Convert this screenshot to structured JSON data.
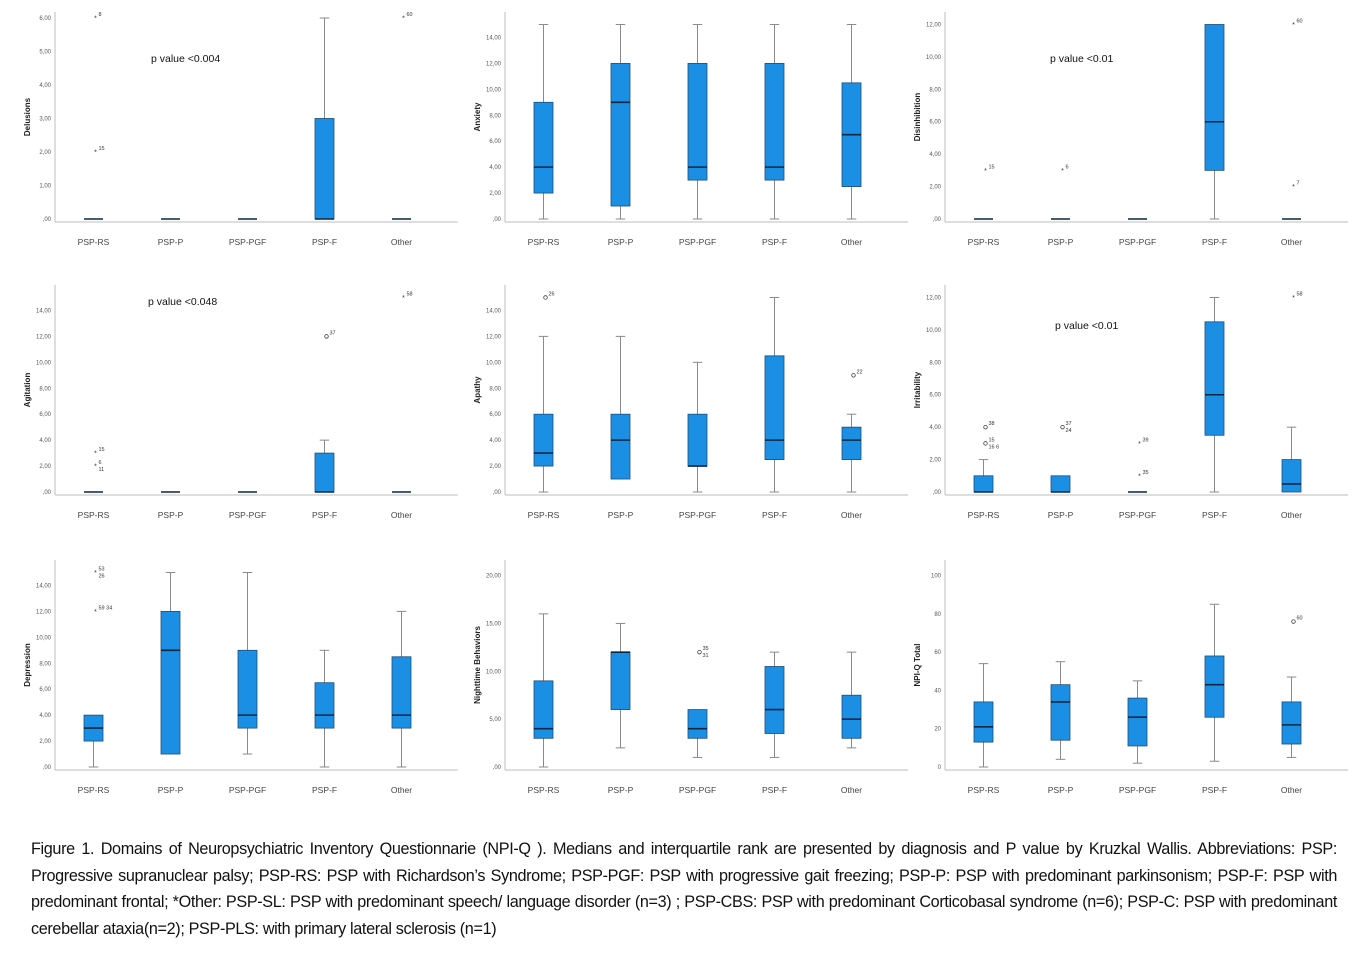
{
  "colors": {
    "box_fill": "#1a8fe3",
    "box_stroke": "#1c4f7a",
    "whisker": "#8a8a8a",
    "median": "#0b2740",
    "axis": "#bdbdbd"
  },
  "caption": "Figure 1. Domains of Neuropsychiatric Inventory Questionnarie (NPI-Q ). Medians and interquartile rank are presented by diagnosis and P value by Kruzkal Wallis. Abbreviations: PSP: Progressive supranuclear palsy; PSP-RS: PSP with Richardson’s Syndrome; PSP-PGF: PSP with progressive gait freezing; PSP-P: PSP with predominant parkinsonism; PSP-F: PSP with predominant frontal; *Other:  PSP-SL: PSP with predominant speech/ language disorder (n=3) ; PSP-CBS: PSP with predominant Corticobasal syndrome (n=6); PSP-C: PSP  with predominant cerebellar ataxia(n=2); PSP-PLS: with primary lateral sclerosis (n=1)",
  "chart_data": [
    {
      "type": "box",
      "title": "",
      "ylabel": "Delusions",
      "ylim": [
        0,
        6
      ],
      "yticks": [
        0,
        1,
        2,
        3,
        4,
        5,
        6
      ],
      "ytick_labels": [
        ",00",
        "1,00",
        "2,00",
        "3,00",
        "4,00",
        "5,00",
        "6,00"
      ],
      "annotation": "p value <0.004",
      "categories": [
        "PSP-RS",
        "PSP-P",
        "PSP-PGF",
        "PSP-F",
        "Other"
      ],
      "boxes": [
        {
          "min": 0,
          "q1": 0,
          "median": 0,
          "q3": 0,
          "max": 0
        },
        {
          "min": 0,
          "q1": 0,
          "median": 0,
          "q3": 0,
          "max": 0
        },
        {
          "min": 0,
          "q1": 0,
          "median": 0,
          "q3": 0,
          "max": 0
        },
        {
          "min": 0,
          "q1": 0,
          "median": 0,
          "q3": 3,
          "max": 6
        },
        {
          "min": 0,
          "q1": 0,
          "median": 0,
          "q3": 0,
          "max": 0
        }
      ],
      "outliers": [
        {
          "category": "PSP-RS",
          "value": 6,
          "marker": "*",
          "label": "8"
        },
        {
          "category": "PSP-RS",
          "value": 2,
          "marker": "*",
          "label": "15"
        },
        {
          "category": "Other",
          "value": 6,
          "marker": "*",
          "label": "60"
        }
      ]
    },
    {
      "type": "box",
      "title": "",
      "ylabel": "Anxiety",
      "ylim": [
        0,
        15.5
      ],
      "yticks": [
        0,
        2,
        4,
        6,
        8,
        10,
        12,
        14
      ],
      "ytick_labels": [
        ",00",
        "2,00",
        "4,00",
        "6,00",
        "8,00",
        "10,00",
        "12,00",
        "14,00"
      ],
      "annotation": "",
      "categories": [
        "PSP-RS",
        "PSP-P",
        "PSP-PGF",
        "PSP-F",
        "Other"
      ],
      "boxes": [
        {
          "min": 0,
          "q1": 2,
          "median": 4,
          "q3": 9,
          "max": 15
        },
        {
          "min": 0,
          "q1": 1,
          "median": 9,
          "q3": 12,
          "max": 15
        },
        {
          "min": 0,
          "q1": 3,
          "median": 4,
          "q3": 12,
          "max": 15
        },
        {
          "min": 0,
          "q1": 3,
          "median": 4,
          "q3": 12,
          "max": 15
        },
        {
          "min": 0,
          "q1": 2.5,
          "median": 6.5,
          "q3": 10.5,
          "max": 15
        }
      ],
      "outliers": []
    },
    {
      "type": "box",
      "title": "",
      "ylabel": "Disinhibition",
      "ylim": [
        0,
        12.4
      ],
      "yticks": [
        0,
        2,
        4,
        6,
        8,
        10,
        12
      ],
      "ytick_labels": [
        ",00",
        "2,00",
        "4,00",
        "6,00",
        "8,00",
        "10,00",
        "12,00"
      ],
      "annotation": "p value <0.01",
      "categories": [
        "PSP-RS",
        "PSP-P",
        "PSP-PGF",
        "PSP-F",
        "Other"
      ],
      "boxes": [
        {
          "min": 0,
          "q1": 0,
          "median": 0,
          "q3": 0,
          "max": 0
        },
        {
          "min": 0,
          "q1": 0,
          "median": 0,
          "q3": 0,
          "max": 0
        },
        {
          "min": 0,
          "q1": 0,
          "median": 0,
          "q3": 0,
          "max": 0
        },
        {
          "min": 0,
          "q1": 3,
          "median": 6,
          "q3": 12,
          "max": 12
        },
        {
          "min": 0,
          "q1": 0,
          "median": 0,
          "q3": 0,
          "max": 0
        }
      ],
      "outliers": [
        {
          "category": "PSP-RS",
          "value": 3,
          "marker": "*",
          "label": "15"
        },
        {
          "category": "PSP-P",
          "value": 3,
          "marker": "*",
          "label": "6"
        },
        {
          "category": "Other",
          "value": 12,
          "marker": "*",
          "label": "60"
        },
        {
          "category": "Other",
          "value": 2,
          "marker": "*",
          "label": "7"
        }
      ]
    },
    {
      "type": "box",
      "title": "",
      "ylabel": "Agitation",
      "ylim": [
        0,
        15.5
      ],
      "yticks": [
        0,
        2,
        4,
        6,
        8,
        10,
        12,
        14
      ],
      "ytick_labels": [
        ",00",
        "2,00",
        "4,00",
        "6,00",
        "8,00",
        "10,00",
        "12,00",
        "14,00"
      ],
      "annotation": "p value <0.048",
      "categories": [
        "PSP-RS",
        "PSP-P",
        "PSP-PGF",
        "PSP-F",
        "Other"
      ],
      "boxes": [
        {
          "min": 0,
          "q1": 0,
          "median": 0,
          "q3": 0,
          "max": 0
        },
        {
          "min": 0,
          "q1": 0,
          "median": 0,
          "q3": 0,
          "max": 0
        },
        {
          "min": 0,
          "q1": 0,
          "median": 0,
          "q3": 0,
          "max": 0
        },
        {
          "min": 0,
          "q1": 0,
          "median": 0,
          "q3": 3,
          "max": 4
        },
        {
          "min": 0,
          "q1": 0,
          "median": 0,
          "q3": 0,
          "max": 0
        }
      ],
      "outliers": [
        {
          "category": "PSP-RS",
          "value": 3,
          "marker": "*",
          "label": "15"
        },
        {
          "category": "PSP-RS",
          "value": 2,
          "marker": "*",
          "label": "6"
        },
        {
          "category": "PSP-RS",
          "value": 2,
          "marker": "*",
          "label": "11"
        },
        {
          "category": "PSP-F",
          "value": 12,
          "marker": "o",
          "label": "37"
        },
        {
          "category": "Other",
          "value": 15,
          "marker": "*",
          "label": "58"
        }
      ]
    },
    {
      "type": "box",
      "title": "",
      "ylabel": "Apathy",
      "ylim": [
        0,
        15.5
      ],
      "yticks": [
        0,
        2,
        4,
        6,
        8,
        10,
        12,
        14
      ],
      "ytick_labels": [
        ",00",
        "2,00",
        "4,00",
        "6,00",
        "8,00",
        "10,00",
        "12,00",
        "14,00"
      ],
      "annotation": "",
      "categories": [
        "PSP-RS",
        "PSP-P",
        "PSP-PGF",
        "PSP-F",
        "Other"
      ],
      "boxes": [
        {
          "min": 0,
          "q1": 2,
          "median": 3,
          "q3": 6,
          "max": 12
        },
        {
          "min": 1,
          "q1": 1,
          "median": 4,
          "q3": 6,
          "max": 12
        },
        {
          "min": 0,
          "q1": 2,
          "median": 2,
          "q3": 6,
          "max": 10
        },
        {
          "min": 0,
          "q1": 2.5,
          "median": 4,
          "q3": 10.5,
          "max": 15
        },
        {
          "min": 0,
          "q1": 2.5,
          "median": 4,
          "q3": 5,
          "max": 6
        }
      ],
      "outliers": [
        {
          "category": "PSP-RS",
          "value": 15,
          "marker": "o",
          "label": "26"
        },
        {
          "category": "Other",
          "value": 9,
          "marker": "o",
          "label": "22"
        }
      ]
    },
    {
      "type": "box",
      "title": "",
      "ylabel": "Irritability",
      "ylim": [
        0,
        12.4
      ],
      "yticks": [
        0,
        2,
        4,
        6,
        8,
        10,
        12
      ],
      "ytick_labels": [
        ",00",
        "2,00",
        "4,00",
        "6,00",
        "8,00",
        "10,00",
        "12,00"
      ],
      "annotation": "p value <0.01",
      "categories": [
        "PSP-RS",
        "PSP-P",
        "PSP-PGF",
        "PSP-F",
        "Other"
      ],
      "boxes": [
        {
          "min": 0,
          "q1": 0,
          "median": 0,
          "q3": 1,
          "max": 2
        },
        {
          "min": 0,
          "q1": 0,
          "median": 0,
          "q3": 1,
          "max": 1
        },
        {
          "min": 0,
          "q1": 0,
          "median": 0,
          "q3": 0,
          "max": 0
        },
        {
          "min": 0,
          "q1": 3.5,
          "median": 6,
          "q3": 10.5,
          "max": 12
        },
        {
          "min": 0,
          "q1": 0,
          "median": 0.5,
          "q3": 2,
          "max": 4
        }
      ],
      "outliers": [
        {
          "category": "PSP-RS",
          "value": 4,
          "marker": "o",
          "label": "38"
        },
        {
          "category": "PSP-RS",
          "value": 3,
          "marker": "o",
          "label": "15"
        },
        {
          "category": "PSP-RS",
          "value": 3,
          "marker": "o",
          "label": "16  6"
        },
        {
          "category": "PSP-P",
          "value": 4,
          "marker": "o",
          "label": "37"
        },
        {
          "category": "PSP-P",
          "value": 4,
          "marker": "o",
          "label": "24"
        },
        {
          "category": "PSP-PGF",
          "value": 3,
          "marker": "*",
          "label": "39"
        },
        {
          "category": "PSP-PGF",
          "value": 1,
          "marker": "*",
          "label": "35"
        },
        {
          "category": "Other",
          "value": 12,
          "marker": "*",
          "label": "58"
        }
      ]
    },
    {
      "type": "box",
      "title": "",
      "ylabel": "Depression",
      "ylim": [
        0,
        15.5
      ],
      "yticks": [
        0,
        2,
        4,
        6,
        8,
        10,
        12,
        14
      ],
      "ytick_labels": [
        ",00",
        "2,00",
        "4,00",
        "6,00",
        "8,00",
        "10,00",
        "12,00",
        "14,00"
      ],
      "annotation": "",
      "categories": [
        "PSP-RS",
        "PSP-P",
        "PSP-PGF",
        "PSP-F",
        "Other"
      ],
      "boxes": [
        {
          "min": 0,
          "q1": 2,
          "median": 3,
          "q3": 4,
          "max": 4
        },
        {
          "min": 1,
          "q1": 1,
          "median": 9,
          "q3": 12,
          "max": 15
        },
        {
          "min": 1,
          "q1": 3,
          "median": 4,
          "q3": 9,
          "max": 15
        },
        {
          "min": 0,
          "q1": 3,
          "median": 4,
          "q3": 6.5,
          "max": 9
        },
        {
          "min": 0,
          "q1": 3,
          "median": 4,
          "q3": 8.5,
          "max": 12
        }
      ],
      "outliers": [
        {
          "category": "PSP-RS",
          "value": 15,
          "marker": "*",
          "label": "53"
        },
        {
          "category": "PSP-RS",
          "value": 15,
          "marker": "*",
          "label": "26"
        },
        {
          "category": "PSP-RS",
          "value": 12,
          "marker": "*",
          "label": "59  34"
        }
      ]
    },
    {
      "type": "box",
      "title": "",
      "ylabel": "Nighttime Behaviors",
      "ylim": [
        0,
        21
      ],
      "yticks": [
        0,
        5,
        10,
        15,
        20
      ],
      "ytick_labels": [
        ",00",
        "5,00",
        "10,00",
        "15,00",
        "20,00"
      ],
      "annotation": "",
      "categories": [
        "PSP-RS",
        "PSP-P",
        "PSP-PGF",
        "PSP-F",
        "Other"
      ],
      "boxes": [
        {
          "min": 0,
          "q1": 3,
          "median": 4,
          "q3": 9,
          "max": 16
        },
        {
          "min": 2,
          "q1": 6,
          "median": 12,
          "q3": 12,
          "max": 15
        },
        {
          "min": 1,
          "q1": 3,
          "median": 4,
          "q3": 6,
          "max": 6
        },
        {
          "min": 1,
          "q1": 3.5,
          "median": 6,
          "q3": 10.5,
          "max": 12
        },
        {
          "min": 2,
          "q1": 3,
          "median": 5,
          "q3": 7.5,
          "max": 12
        }
      ],
      "outliers": [
        {
          "category": "PSP-PGF",
          "value": 12,
          "marker": "o",
          "label": "35"
        },
        {
          "category": "PSP-PGF",
          "value": 12,
          "marker": "o",
          "label": "31"
        }
      ]
    },
    {
      "type": "box",
      "title": "",
      "ylabel": "NPI-Q Total",
      "ylim": [
        0,
        105
      ],
      "yticks": [
        0,
        20,
        40,
        60,
        80,
        100
      ],
      "ytick_labels": [
        "0",
        "20",
        "40",
        "60",
        "80",
        "100"
      ],
      "annotation": "",
      "categories": [
        "PSP-RS",
        "PSP-P",
        "PSP-PGF",
        "PSP-F",
        "Other"
      ],
      "boxes": [
        {
          "min": 0,
          "q1": 13,
          "median": 21,
          "q3": 34,
          "max": 54
        },
        {
          "min": 4,
          "q1": 14,
          "median": 34,
          "q3": 43,
          "max": 55
        },
        {
          "min": 2,
          "q1": 11,
          "median": 26,
          "q3": 36,
          "max": 45
        },
        {
          "min": 3,
          "q1": 26,
          "median": 43,
          "q3": 58,
          "max": 85
        },
        {
          "min": 5,
          "q1": 12,
          "median": 22,
          "q3": 34,
          "max": 47
        }
      ],
      "outliers": [
        {
          "category": "Other",
          "value": 76,
          "marker": "o",
          "label": "60"
        }
      ]
    }
  ]
}
